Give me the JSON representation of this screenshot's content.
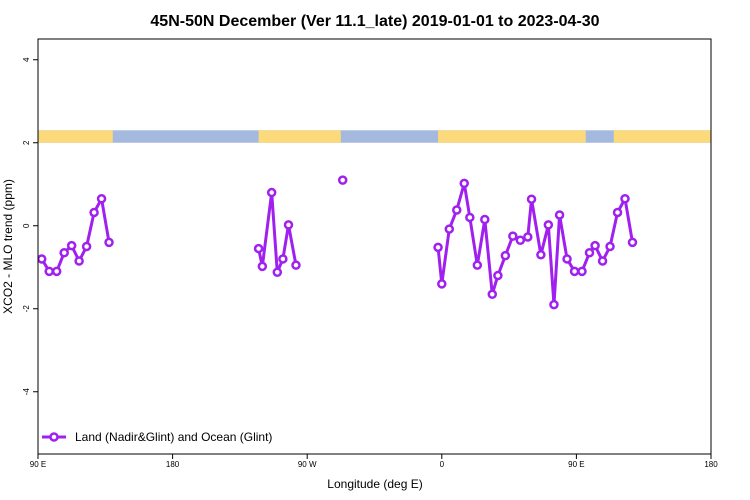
{
  "chart_data": {
    "type": "line",
    "title": "45N-50N December (Ver 11.1_late)   2019-01-01 to 2023-04-30",
    "xlabel": "Longitude (deg E)",
    "ylabel": "XCO2 - MLO trend (ppm)",
    "xlim": [
      -90,
      270
    ],
    "ylim": [
      -5.5,
      4.5
    ],
    "x_ticks": [
      {
        "value": -90,
        "label": "90 E"
      },
      {
        "value": -18,
        "label": "180"
      },
      {
        "value": 54,
        "label": "90 W"
      },
      {
        "value": 126,
        "label": "0"
      },
      {
        "value": 198,
        "label": "90 E"
      },
      {
        "value": 270,
        "label": "180"
      }
    ],
    "y_ticks": [
      {
        "value": 4,
        "label": "4"
      },
      {
        "value": 2,
        "label": "2"
      },
      {
        "value": 0,
        "label": "0"
      },
      {
        "value": -2,
        "label": "-2"
      },
      {
        "value": -4,
        "label": "-4"
      }
    ],
    "map_strip": {
      "ylim": [
        2.0,
        2.3
      ],
      "ocean_color": "#a4b9dd",
      "land_color": "#fcd97a",
      "land_ranges": [
        [
          -90,
          -50
        ],
        [
          28,
          72
        ],
        [
          124,
          203
        ],
        [
          218,
          270
        ]
      ]
    },
    "legend": {
      "label": "Land (Nadir&Glint) and Ocean (Glint)",
      "position": "bottom-left"
    },
    "series": [
      {
        "name": "Land (Nadir&Glint) and Ocean (Glint)",
        "color": "#a020f0",
        "segments": [
          [
            [
              -88,
              -0.8
            ],
            [
              -84,
              -1.1
            ],
            [
              -80,
              -1.1
            ],
            [
              -76,
              -0.65
            ],
            [
              -72,
              -0.48
            ],
            [
              -68,
              -0.85
            ],
            [
              -64,
              -0.5
            ],
            [
              -60,
              0.32
            ],
            [
              -56,
              0.65
            ],
            [
              -52,
              -0.4
            ]
          ],
          [
            [
              28,
              -0.55
            ],
            [
              30,
              -0.98
            ],
            [
              35,
              0.8
            ],
            [
              38,
              -1.12
            ],
            [
              41,
              -0.8
            ],
            [
              44,
              0.02
            ],
            [
              48,
              -0.95
            ]
          ],
          [
            [
              73,
              1.1
            ]
          ],
          [
            [
              124,
              -0.52
            ],
            [
              126,
              -1.4
            ],
            [
              130,
              -0.08
            ],
            [
              134,
              0.38
            ],
            [
              138,
              1.02
            ],
            [
              141,
              0.2
            ],
            [
              145,
              -0.95
            ],
            [
              149,
              0.15
            ],
            [
              153,
              -1.65
            ],
            [
              156,
              -1.2
            ],
            [
              160,
              -0.72
            ],
            [
              164,
              -0.25
            ],
            [
              168,
              -0.35
            ],
            [
              172,
              -0.27
            ],
            [
              174,
              0.64
            ],
            [
              179,
              -0.7
            ],
            [
              183,
              0.02
            ],
            [
              186,
              -1.9
            ],
            [
              189,
              0.26
            ],
            [
              193,
              -0.8
            ],
            [
              197,
              -1.1
            ],
            [
              201,
              -1.1
            ],
            [
              205,
              -0.65
            ],
            [
              208,
              -0.48
            ],
            [
              212,
              -0.85
            ],
            [
              216,
              -0.5
            ],
            [
              220,
              0.32
            ],
            [
              224,
              0.65
            ],
            [
              228,
              -0.4
            ]
          ]
        ]
      }
    ]
  }
}
